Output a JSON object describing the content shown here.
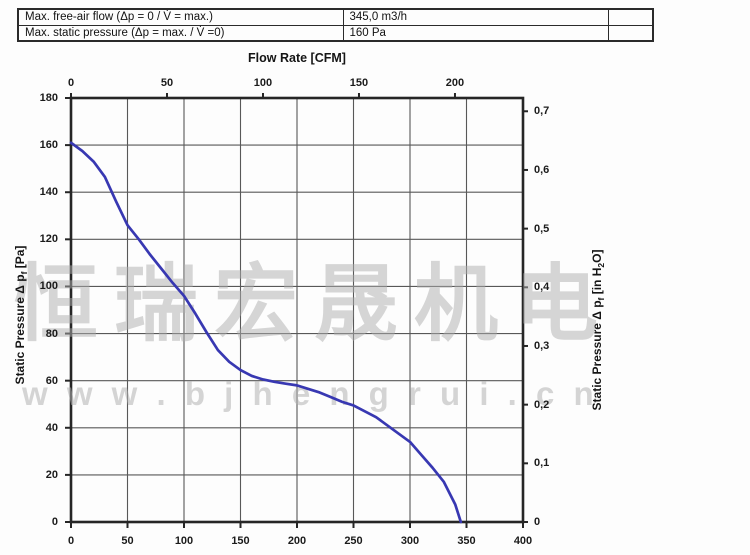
{
  "spec_table": {
    "rows": [
      {
        "label": "Max. free-air flow (Δp = 0 / V̇ = max.)",
        "value": "345,0 m3/h",
        "extra": ""
      },
      {
        "label": "Max. static pressure (Δp = max. / V̇ =0)",
        "value": "160 Pa",
        "extra": ""
      }
    ]
  },
  "axis_labels": {
    "left": {
      "main": "Static Pressure Δ p",
      "sub": "f",
      "unit": " [Pa]"
    },
    "right": {
      "main": "Static Pressure Δ p",
      "sub": "f",
      "unit_pre": " [in H",
      "unit_sub": "2",
      "unit_post": "O]"
    }
  },
  "watermark": {
    "line1": "恒瑞宏晟机电",
    "line2": "w w w . b j h e n g r u i . c n"
  },
  "chart_data": {
    "type": "line",
    "title": "",
    "xlabel": "",
    "ylabel": "Static Pressure Δ pf [Pa]",
    "grid": true,
    "legend": false,
    "xlim": [
      0,
      400
    ],
    "ylim": [
      0,
      180
    ],
    "x_ticks": [
      0,
      50,
      100,
      150,
      200,
      250,
      300,
      350,
      400
    ],
    "y_ticks": [
      0,
      20,
      40,
      60,
      80,
      100,
      120,
      140,
      160,
      180
    ],
    "top_axis": {
      "title": "Flow Rate [CFM]",
      "ticks": [
        0,
        50,
        100,
        150,
        200
      ],
      "m3h_per_cfm": 1.699
    },
    "right_axis": {
      "title": "Static Pressure Δ pf [in H2O]",
      "tick_labels": [
        "0,7",
        "0,6",
        "0,5",
        "0,4",
        "0,3",
        "0,2",
        "0,1",
        "0"
      ],
      "tick_values": [
        0.7,
        0.6,
        0.5,
        0.4,
        0.3,
        0.2,
        0.1,
        0
      ],
      "pa_per_inh2o": 249.09
    },
    "series": [
      {
        "name": "fan-performance-curve",
        "x": [
          0,
          10,
          20,
          30,
          40,
          50,
          60,
          70,
          80,
          90,
          100,
          110,
          120,
          130,
          140,
          150,
          160,
          170,
          180,
          190,
          200,
          210,
          220,
          230,
          240,
          250,
          260,
          270,
          280,
          290,
          300,
          310,
          320,
          330,
          340,
          345
        ],
        "y": [
          161,
          157.5,
          153,
          146.5,
          136,
          126,
          120,
          113.5,
          107.5,
          101.5,
          96,
          88.5,
          80.5,
          73,
          68,
          64.5,
          62,
          60.5,
          59.5,
          58.7,
          58,
          56.5,
          55,
          53,
          51,
          49.5,
          47,
          44.5,
          41,
          37.5,
          34,
          28.5,
          23,
          17,
          7.5,
          0
        ]
      }
    ]
  },
  "colors": {
    "curve": "#3838b2",
    "grid": "#585858",
    "axis": "#262626",
    "text": "#1a1a1a",
    "watermark": "#c7c7c7"
  }
}
